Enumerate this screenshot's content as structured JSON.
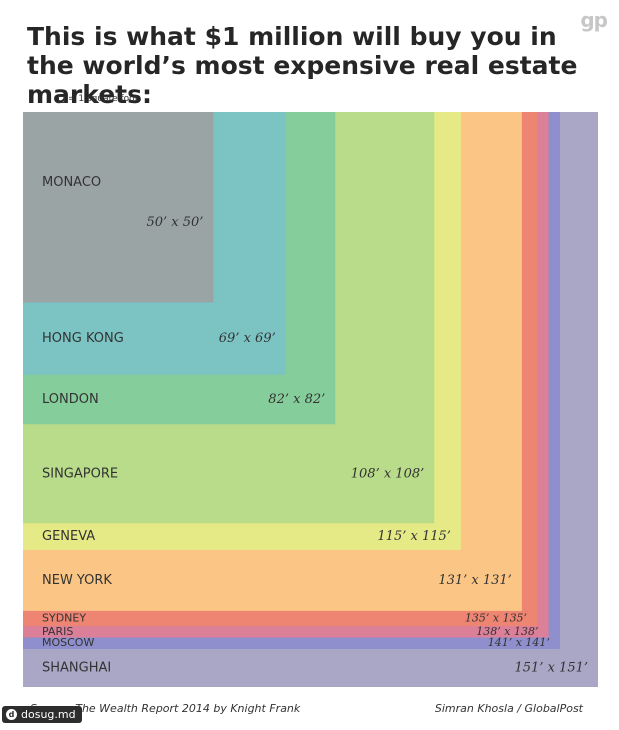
{
  "header": {
    "logo": "gp",
    "title": "This is what $1 million will buy you in the world’s most expensive real estate markets:",
    "legend": "= 1 square foot"
  },
  "chart_data": {
    "type": "nested-squares",
    "unit": "square foot",
    "series": [
      {
        "city": "SHANGHAI",
        "side": 151,
        "label": "151’ x 151’",
        "color": "#aaa6c5"
      },
      {
        "city": "MOSCOW",
        "side": 141,
        "label": "141’ x 141’",
        "color": "#8e8fcc"
      },
      {
        "city": "PARIS",
        "side": 138,
        "label": "138’ x 138’",
        "color": "#dc7f98"
      },
      {
        "city": "SYDNEY",
        "side": 135,
        "label": "135’ x 135’",
        "color": "#ee8472"
      },
      {
        "city": "NEW YORK",
        "side": 131,
        "label": "131’ x 131’",
        "color": "#fbc685"
      },
      {
        "city": "GENEVA",
        "side": 115,
        "label": "115’ x 115’",
        "color": "#e5ea86"
      },
      {
        "city": "SINGAPORE",
        "side": 108,
        "label": "108’ x 108’",
        "color": "#b8dc89"
      },
      {
        "city": "LONDON",
        "side": 82,
        "label": "82’ x 82’",
        "color": "#85cd9b"
      },
      {
        "city": "HONG KONG",
        "side": 69,
        "label": "69’ x 69’",
        "color": "#7cc3c3"
      },
      {
        "city": "MONACO",
        "side": 50,
        "label": "50’ x 50’",
        "color": "#9aa4a5"
      }
    ]
  },
  "footer": {
    "source": "Source: The Wealth Report 2014 by Knight Frank",
    "credit": "Simran Khosla / GlobalPost"
  },
  "watermark": {
    "text": "dosug.md",
    "icon": "d"
  }
}
